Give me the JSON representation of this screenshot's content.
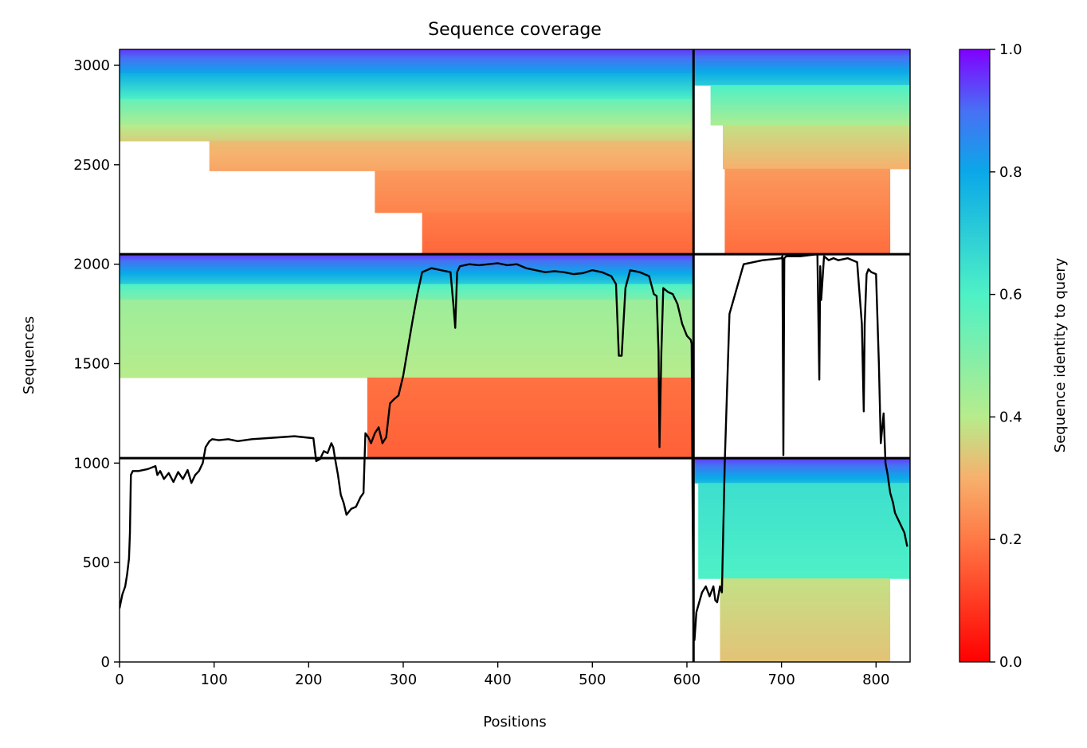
{
  "chart_data": {
    "type": "heatmap",
    "title": "Sequence coverage",
    "xlabel": "Positions",
    "ylabel": "Sequences",
    "xlim": [
      0,
      836
    ],
    "ylim": [
      0,
      3080
    ],
    "x_ticks": [
      0,
      100,
      200,
      300,
      400,
      500,
      600,
      700,
      800
    ],
    "y_ticks": [
      0,
      500,
      1000,
      1500,
      2000,
      2500,
      3000
    ],
    "colorbar": {
      "label": "Sequence identity to query",
      "range": [
        0.0,
        1.0
      ],
      "ticks": [
        "0.0",
        "0.2",
        "0.4",
        "0.6",
        "0.8",
        "1.0"
      ],
      "colormap": "rainbow_r"
    },
    "chain_boundaries": {
      "x": [
        607
      ],
      "y": [
        1025,
        2050
      ]
    },
    "blocks": [
      {
        "x": [
          0,
          607
        ],
        "y": [
          2050,
          3080
        ],
        "bands": [
          {
            "y": [
              2960,
              3080
            ],
            "x": [
              0,
              607
            ],
            "identity": [
              0.95,
              0.8
            ]
          },
          {
            "y": [
              2830,
              2960
            ],
            "x": [
              0,
              607
            ],
            "identity": [
              0.78,
              0.6
            ]
          },
          {
            "y": [
              2700,
              2830
            ],
            "x": [
              0,
              607
            ],
            "identity": [
              0.55,
              0.42
            ]
          },
          {
            "y": [
              2620,
              2700
            ],
            "x": [
              0,
              607
            ],
            "identity": [
              0.4,
              0.35
            ]
          },
          {
            "y": [
              2470,
              2620
            ],
            "x": [
              95,
              607
            ],
            "identity": [
              0.32,
              0.28
            ]
          },
          {
            "y": [
              2260,
              2470
            ],
            "x": [
              270,
              607
            ],
            "identity": [
              0.26,
              0.22
            ]
          },
          {
            "y": [
              2050,
              2260
            ],
            "x": [
              320,
              607
            ],
            "identity": [
              0.21,
              0.17
            ]
          }
        ]
      },
      {
        "x": [
          607,
          836
        ],
        "y": [
          2050,
          3080
        ],
        "bands": [
          {
            "y": [
              2900,
              3080
            ],
            "x": [
              607,
              836
            ],
            "identity": [
              0.95,
              0.7
            ]
          },
          {
            "y": [
              2700,
              2900
            ],
            "x": [
              625,
              836
            ],
            "identity": [
              0.6,
              0.42
            ]
          },
          {
            "y": [
              2480,
              2700
            ],
            "x": [
              638,
              836
            ],
            "identity": [
              0.38,
              0.3
            ]
          },
          {
            "y": [
              2050,
              2480
            ],
            "x": [
              640,
              815
            ],
            "identity": [
              0.26,
              0.18
            ]
          }
        ]
      },
      {
        "x": [
          0,
          607
        ],
        "y": [
          1025,
          2050
        ],
        "bands": [
          {
            "y": [
              1900,
              2050
            ],
            "x": [
              0,
              607
            ],
            "identity": [
              0.95,
              0.7
            ]
          },
          {
            "y": [
              1820,
              1900
            ],
            "x": [
              0,
              607
            ],
            "identity": [
              0.6,
              0.5
            ]
          },
          {
            "y": [
              1430,
              1820
            ],
            "x": [
              0,
              607
            ],
            "identity": [
              0.45,
              0.4
            ]
          },
          {
            "y": [
              1025,
              1430
            ],
            "x": [
              262,
              607
            ],
            "identity": [
              0.19,
              0.16
            ]
          }
        ]
      },
      {
        "x": [
          607,
          836
        ],
        "y": [
          0,
          1025
        ],
        "bands": [
          {
            "y": [
              900,
              1025
            ],
            "x": [
              607,
              836
            ],
            "identity": [
              0.95,
              0.75
            ]
          },
          {
            "y": [
              420,
              900
            ],
            "x": [
              612,
              836
            ],
            "identity": [
              0.65,
              0.6
            ]
          },
          {
            "y": [
              0,
              420
            ],
            "x": [
              635,
              815
            ],
            "identity": [
              0.38,
              0.33
            ]
          }
        ]
      }
    ],
    "coverage_line": {
      "x": [
        0,
        3,
        6,
        8,
        10,
        11,
        12,
        14,
        20,
        30,
        38,
        40,
        43,
        47,
        52,
        57,
        62,
        67,
        72,
        76,
        80,
        84,
        88,
        91,
        95,
        98,
        105,
        115,
        125,
        140,
        155,
        170,
        185,
        195,
        205,
        208,
        212,
        216,
        220,
        224,
        226,
        228,
        231,
        234,
        237,
        240,
        245,
        250,
        255,
        258,
        260,
        263,
        266,
        270,
        274,
        278,
        282,
        286,
        290,
        295,
        300,
        305,
        310,
        315,
        320,
        330,
        340,
        350,
        353,
        355,
        357,
        360,
        370,
        380,
        390,
        400,
        410,
        420,
        430,
        440,
        450,
        460,
        470,
        480,
        490,
        500,
        510,
        520,
        525,
        528,
        531,
        535,
        540,
        550,
        560,
        565,
        568,
        570,
        571,
        573,
        575,
        580,
        585,
        590,
        595,
        600,
        604,
        605,
        606,
        607,
        608,
        610,
        613,
        616,
        620,
        624,
        628,
        630,
        632,
        635,
        637,
        640,
        645,
        660,
        680,
        700,
        701,
        702,
        703,
        705,
        720,
        738,
        740,
        741,
        742,
        745,
        750,
        755,
        760,
        770,
        780,
        785,
        787,
        788,
        790,
        792,
        795,
        800,
        803,
        805,
        808,
        810,
        812,
        815,
        818,
        820,
        825,
        830,
        833,
        836
      ],
      "y": [
        270,
        340,
        380,
        440,
        520,
        650,
        940,
        960,
        960,
        970,
        985,
        940,
        960,
        920,
        950,
        905,
        955,
        920,
        965,
        900,
        940,
        960,
        1000,
        1080,
        1110,
        1120,
        1115,
        1120,
        1110,
        1120,
        1125,
        1130,
        1135,
        1130,
        1125,
        1010,
        1020,
        1060,
        1050,
        1100,
        1080,
        1020,
        940,
        840,
        800,
        740,
        770,
        780,
        830,
        850,
        1150,
        1130,
        1100,
        1150,
        1180,
        1100,
        1130,
        1300,
        1320,
        1340,
        1440,
        1580,
        1720,
        1850,
        1960,
        1980,
        1970,
        1960,
        1800,
        1680,
        1960,
        1990,
        2000,
        1995,
        2000,
        2005,
        1995,
        2000,
        1980,
        1970,
        1960,
        1965,
        1960,
        1950,
        1955,
        1970,
        1960,
        1940,
        1900,
        1540,
        1540,
        1880,
        1970,
        1960,
        1940,
        1850,
        1840,
        1560,
        1080,
        1560,
        1880,
        1860,
        1850,
        1800,
        1700,
        1640,
        1620,
        1600,
        800,
        150,
        110,
        250,
        300,
        350,
        380,
        330,
        380,
        310,
        300,
        380,
        350,
        1000,
        1750,
        2000,
        2020,
        2030,
        2040,
        1040,
        2030,
        2040,
        2040,
        2050,
        1420,
        1990,
        1820,
        2040,
        2020,
        2030,
        2020,
        2030,
        2010,
        1700,
        1260,
        1700,
        1950,
        1975,
        1960,
        1950,
        1500,
        1100,
        1250,
        1000,
        950,
        850,
        800,
        750,
        700,
        650,
        580
      ]
    }
  }
}
